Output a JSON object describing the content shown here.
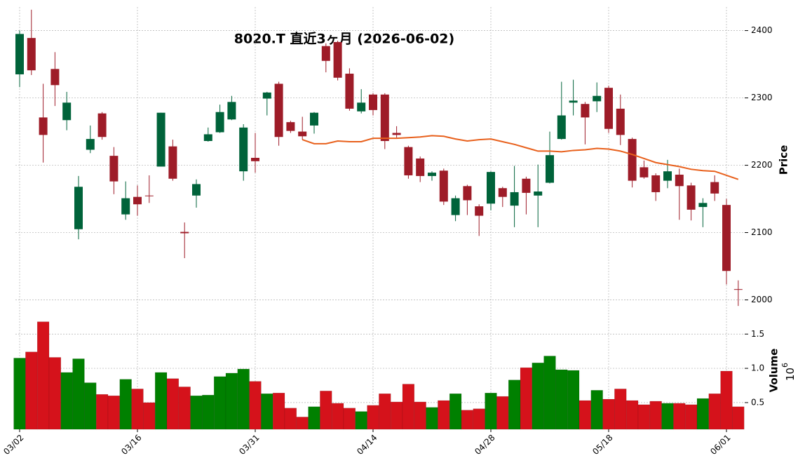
{
  "chart_data": {
    "type": "candlestick",
    "title": "8020.T  直近3ヶ月  (2026-06-02)",
    "categories": [
      "03/02",
      null,
      null,
      null,
      null,
      null,
      null,
      null,
      null,
      null,
      "03/16",
      null,
      null,
      null,
      null,
      null,
      null,
      null,
      null,
      null,
      "03/31",
      null,
      null,
      null,
      null,
      null,
      null,
      null,
      null,
      null,
      "04/14",
      null,
      null,
      null,
      null,
      null,
      null,
      null,
      null,
      null,
      "04/28",
      null,
      null,
      null,
      null,
      null,
      null,
      null,
      null,
      null,
      "05/18",
      null,
      null,
      null,
      null,
      null,
      null,
      null,
      null,
      null,
      "06/01",
      null
    ],
    "open": [
      2335,
      2389,
      2271,
      2343,
      2267,
      2105,
      2223,
      2277,
      2214,
      2127,
      2153,
      2155,
      2198,
      2228,
      2101,
      2155,
      2236,
      2249,
      2268,
      2191,
      2211,
      2299,
      2321,
      2264,
      2250,
      2259,
      2377,
      2383,
      2336,
      2280,
      2305,
      2305,
      2248,
      2227,
      2210,
      2184,
      2192,
      2126,
      2169,
      2139,
      2143,
      2166,
      2140,
      2180,
      2155,
      2174,
      2239,
      2293,
      2291,
      2295,
      2315,
      2284,
      2239,
      2197,
      2185,
      2177,
      2186,
      2170,
      2138,
      2175,
      2141,
      2016
    ],
    "high": [
      2400,
      2431,
      2321,
      2368,
      2309,
      2184,
      2259,
      2279,
      2227,
      2176,
      2170,
      2185,
      2278,
      2238,
      2115,
      2179,
      2256,
      2290,
      2303,
      2261,
      2248,
      2309,
      2324,
      2266,
      2272,
      2279,
      2381,
      2385,
      2344,
      2313,
      2307,
      2307,
      2258,
      2229,
      2213,
      2191,
      2195,
      2155,
      2171,
      2142,
      2191,
      2168,
      2199,
      2183,
      2201,
      2250,
      2324,
      2327,
      2294,
      2323,
      2318,
      2305,
      2241,
      2207,
      2188,
      2208,
      2195,
      2174,
      2151,
      2185,
      2150,
      2029
    ],
    "low": [
      2316,
      2334,
      2204,
      2288,
      2252,
      2090,
      2218,
      2238,
      2157,
      2119,
      2125,
      2144,
      2198,
      2177,
      2062,
      2137,
      2235,
      2248,
      2267,
      2177,
      2189,
      2274,
      2229,
      2248,
      2238,
      2247,
      2338,
      2326,
      2281,
      2277,
      2274,
      2224,
      2241,
      2180,
      2175,
      2177,
      2141,
      2117,
      2126,
      2095,
      2133,
      2138,
      2108,
      2127,
      2108,
      2173,
      2238,
      2274,
      2231,
      2279,
      2248,
      2230,
      2167,
      2180,
      2147,
      2166,
      2119,
      2118,
      2108,
      2147,
      2023,
      1991
    ],
    "close": [
      2395,
      2341,
      2245,
      2319,
      2293,
      2168,
      2239,
      2242,
      2176,
      2151,
      2142,
      2154,
      2278,
      2180,
      2099,
      2172,
      2246,
      2279,
      2294,
      2256,
      2206,
      2308,
      2242,
      2251,
      2243,
      2278,
      2355,
      2330,
      2284,
      2293,
      2282,
      2236,
      2245,
      2185,
      2184,
      2189,
      2146,
      2151,
      2148,
      2125,
      2190,
      2153,
      2160,
      2159,
      2161,
      2215,
      2274,
      2296,
      2271,
      2303,
      2254,
      2245,
      2177,
      2182,
      2160,
      2191,
      2169,
      2134,
      2144,
      2158,
      2043,
      2015
    ],
    "up_color": "#00633a",
    "down_color": "#9e1c28",
    "ylabel": "Price",
    "ylim": [
      1987,
      2435
    ],
    "yticks": [
      2000,
      2100,
      2200,
      2300,
      2400
    ],
    "moving_average": {
      "color": "#e8601c",
      "values": [
        null,
        null,
        null,
        null,
        null,
        null,
        null,
        null,
        null,
        null,
        null,
        null,
        null,
        null,
        null,
        null,
        null,
        null,
        null,
        null,
        null,
        null,
        null,
        null,
        2238,
        2232,
        2232,
        2236,
        2235,
        2235,
        2240,
        2240,
        2240,
        2241,
        2242,
        2244,
        2243,
        2239,
        2236,
        2238,
        2239,
        2235,
        2231,
        2226,
        2221,
        2221,
        2220,
        2222,
        2223,
        2225,
        2224,
        2221,
        2216,
        2210,
        2204,
        2201,
        2198,
        2194,
        2192,
        2191,
        2185,
        2179
      ]
    },
    "volume": {
      "ylabel": "Volume",
      "multiplier_base": 10,
      "multiplier_exponent": 6,
      "values": [
        1.15,
        1.24,
        1.68,
        1.16,
        0.94,
        1.14,
        0.79,
        0.62,
        0.6,
        0.84,
        0.7,
        0.5,
        0.94,
        0.85,
        0.73,
        0.6,
        0.61,
        0.88,
        0.93,
        0.99,
        0.81,
        0.63,
        0.64,
        0.42,
        0.29,
        0.44,
        0.67,
        0.49,
        0.42,
        0.37,
        0.46,
        0.63,
        0.51,
        0.77,
        0.51,
        0.43,
        0.53,
        0.63,
        0.39,
        0.41,
        0.64,
        0.59,
        0.83,
        1.01,
        1.08,
        1.18,
        0.98,
        0.97,
        0.53,
        0.68,
        0.55,
        0.7,
        0.53,
        0.47,
        0.52,
        0.49,
        0.49,
        0.47,
        0.56,
        0.63,
        0.96,
        0.44
      ],
      "up_color": "#008000",
      "down_color": "#d5121b",
      "ylim": [
        0.11,
        1.82
      ],
      "yticks": [
        0.5,
        {
          "value": 1,
          "label": "1.0"
        },
        1.5
      ]
    },
    "grid": true
  }
}
